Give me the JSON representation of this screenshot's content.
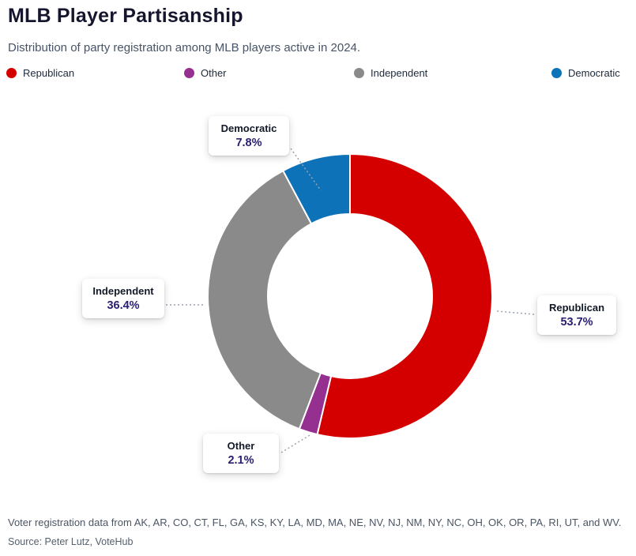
{
  "header": {
    "title": "MLB Player Partisanship",
    "subtitle": "Distribution of party registration among MLB players active in 2024."
  },
  "legend": [
    {
      "label": "Republican",
      "color": "#d40000"
    },
    {
      "label": "Other",
      "color": "#953090"
    },
    {
      "label": "Independent",
      "color": "#8a8a8a"
    },
    {
      "label": "Democratic",
      "color": "#0e72b8"
    }
  ],
  "chart_data": {
    "type": "pie",
    "subtype": "donut",
    "title": "MLB Player Partisanship",
    "categories": [
      "Republican",
      "Other",
      "Independent",
      "Democratic"
    ],
    "values": [
      53.7,
      2.1,
      36.4,
      7.8
    ],
    "unit": "%",
    "colors": [
      "#d40000",
      "#953090",
      "#8a8a8a",
      "#0e72b8"
    ],
    "legend_position": "top",
    "start_angle": "top",
    "direction": "clockwise"
  },
  "callouts": [
    {
      "label": "Democratic",
      "value": "7.8%"
    },
    {
      "label": "Republican",
      "value": "53.7%"
    },
    {
      "label": "Independent",
      "value": "36.4%"
    },
    {
      "label": "Other",
      "value": "2.1%"
    }
  ],
  "footer": {
    "line1": "Voter registration data from AK, AR, CO, CT, FL, GA, KS, KY, LA, MD, MA, NE, NV, NJ, NM, NY, NC, OH, OK, OR, PA, RI, UT, and WV.",
    "line2": "Source: Peter Lutz, VoteHub"
  }
}
